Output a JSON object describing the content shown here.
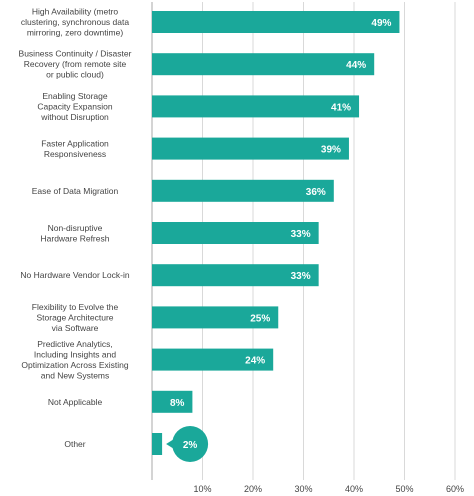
{
  "chart_data": {
    "type": "bar",
    "orientation": "horizontal",
    "categories": [
      [
        "High Availability (metro",
        "clustering, synchronous data",
        "mirroring, zero downtime)"
      ],
      [
        "Business Continuity / Disaster",
        "Recovery (from remote site",
        "or public cloud)"
      ],
      [
        "Enabling Storage",
        "Capacity Expansion",
        "without Disruption"
      ],
      [
        "Faster Application",
        "Responsiveness"
      ],
      [
        "Ease of Data Migration"
      ],
      [
        "Non-disruptive",
        "Hardware Refresh"
      ],
      [
        "No Hardware Vendor Lock-in"
      ],
      [
        "Flexibility to Evolve the",
        "Storage Architecture",
        "via Software"
      ],
      [
        "Predictive Analytics,",
        "Including Insights and",
        "Optimization Across Existing",
        "and New Systems"
      ],
      [
        "Not Applicable"
      ],
      [
        "Other"
      ]
    ],
    "values": [
      49,
      44,
      41,
      39,
      36,
      33,
      33,
      25,
      24,
      8,
      2
    ],
    "value_labels": [
      "49%",
      "44%",
      "41%",
      "39%",
      "36%",
      "33%",
      "33%",
      "25%",
      "24%",
      "8%",
      "2%"
    ],
    "xlim": [
      0,
      60
    ],
    "xticks": [
      10,
      20,
      30,
      40,
      50,
      60
    ],
    "xtick_labels": [
      "10%",
      "20%",
      "30%",
      "40%",
      "50%",
      "60%"
    ],
    "grid": true,
    "title": "",
    "xlabel": "",
    "ylabel": "",
    "colors": {
      "bar": "#1aa89a",
      "grid": "#d9d9d9",
      "axis": "#aaaaaa",
      "label_text": "#444444",
      "value_text": "#ffffff"
    }
  }
}
